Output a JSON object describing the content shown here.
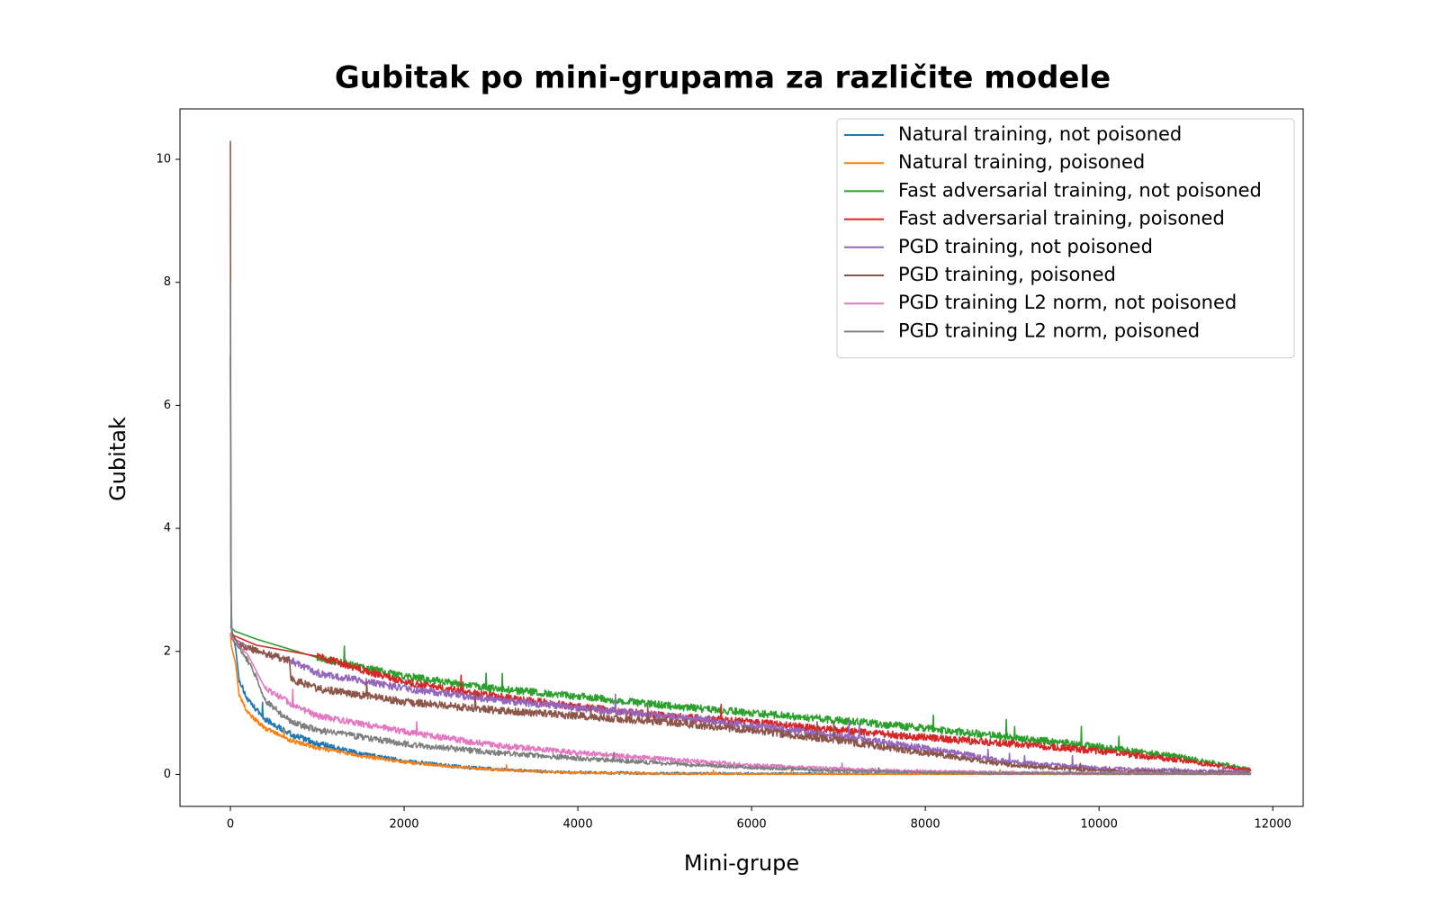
{
  "chart_data": {
    "type": "line",
    "title": "Gubitak po mini-grupama za različite modele",
    "xlabel": "Mini-grupe",
    "ylabel": "Gubitak",
    "xlim": [
      -580,
      12350
    ],
    "ylim": [
      -0.52,
      10.82
    ],
    "xticks": [
      0,
      2000,
      4000,
      6000,
      8000,
      10000,
      12000
    ],
    "yticks": [
      0,
      2,
      4,
      6,
      8,
      10
    ],
    "legend_position": "upper right",
    "grid": false,
    "series": [
      {
        "name": "Natural training, not poisoned",
        "color": "#1f77b4",
        "noise": 0.05,
        "points": [
          [
            0,
            6.8
          ],
          [
            10,
            2.4
          ],
          [
            60,
            2.05
          ],
          [
            100,
            1.55
          ],
          [
            200,
            1.2
          ],
          [
            400,
            0.9
          ],
          [
            700,
            0.65
          ],
          [
            1000,
            0.5
          ],
          [
            1500,
            0.33
          ],
          [
            2000,
            0.22
          ],
          [
            2500,
            0.14
          ],
          [
            3000,
            0.09
          ],
          [
            3500,
            0.05
          ],
          [
            4000,
            0.03
          ],
          [
            5000,
            0.015
          ],
          [
            6000,
            0.01
          ],
          [
            8000,
            0.005
          ],
          [
            11750,
            0.003
          ]
        ]
      },
      {
        "name": "Natural training, poisoned",
        "color": "#ff7f0e",
        "noise": 0.035,
        "points": [
          [
            0,
            2.3
          ],
          [
            10,
            2.1
          ],
          [
            60,
            1.8
          ],
          [
            100,
            1.3
          ],
          [
            200,
            1.0
          ],
          [
            400,
            0.75
          ],
          [
            700,
            0.55
          ],
          [
            1000,
            0.43
          ],
          [
            1500,
            0.3
          ],
          [
            2000,
            0.2
          ],
          [
            2500,
            0.13
          ],
          [
            3000,
            0.08
          ],
          [
            3500,
            0.05
          ],
          [
            4000,
            0.025
          ],
          [
            5000,
            0.01
          ],
          [
            6000,
            0.008
          ],
          [
            8000,
            0.005
          ],
          [
            11750,
            0.003
          ]
        ]
      },
      {
        "name": "Fast adversarial training, not poisoned",
        "color": "#2ca02c",
        "noise": 0.06,
        "points": [
          [
            0,
            2.4
          ],
          [
            50,
            2.33
          ],
          [
            300,
            2.2
          ],
          [
            1000,
            1.9
          ],
          [
            2000,
            1.6
          ],
          [
            3000,
            1.4
          ],
          [
            4000,
            1.27
          ],
          [
            5000,
            1.12
          ],
          [
            6000,
            1.0
          ],
          [
            7000,
            0.88
          ],
          [
            8000,
            0.75
          ],
          [
            9000,
            0.6
          ],
          [
            10000,
            0.45
          ],
          [
            11000,
            0.27
          ],
          [
            11750,
            0.08
          ]
        ]
      },
      {
        "name": "Fast adversarial training, poisoned",
        "color": "#d62728",
        "noise": 0.06,
        "points": [
          [
            0,
            2.3
          ],
          [
            50,
            2.25
          ],
          [
            300,
            2.1
          ],
          [
            1000,
            1.92
          ],
          [
            2000,
            1.5
          ],
          [
            3000,
            1.28
          ],
          [
            4000,
            1.1
          ],
          [
            5000,
            0.95
          ],
          [
            6000,
            0.85
          ],
          [
            7000,
            0.72
          ],
          [
            8000,
            0.6
          ],
          [
            9000,
            0.5
          ],
          [
            10000,
            0.38
          ],
          [
            11000,
            0.22
          ],
          [
            11750,
            0.06
          ]
        ]
      },
      {
        "name": "PGD training, not poisoned",
        "color": "#9467bd",
        "noise": 0.06,
        "points": [
          [
            0,
            2.3
          ],
          [
            50,
            2.2
          ],
          [
            300,
            2.0
          ],
          [
            700,
            1.85
          ],
          [
            1000,
            1.65
          ],
          [
            2000,
            1.4
          ],
          [
            3000,
            1.22
          ],
          [
            4000,
            1.08
          ],
          [
            5000,
            0.95
          ],
          [
            6000,
            0.8
          ],
          [
            7000,
            0.62
          ],
          [
            8000,
            0.42
          ],
          [
            9000,
            0.2
          ],
          [
            10000,
            0.1
          ],
          [
            11000,
            0.06
          ],
          [
            11750,
            0.04
          ]
        ]
      },
      {
        "name": "PGD training, poisoned",
        "color": "#8c564b",
        "noise": 0.06,
        "points": [
          [
            0,
            10.3
          ],
          [
            5,
            3.5
          ],
          [
            15,
            2.3
          ],
          [
            100,
            2.1
          ],
          [
            680,
            1.85
          ],
          [
            700,
            1.55
          ],
          [
            1000,
            1.4
          ],
          [
            2000,
            1.18
          ],
          [
            3000,
            1.05
          ],
          [
            4000,
            0.95
          ],
          [
            5000,
            0.85
          ],
          [
            6000,
            0.72
          ],
          [
            7000,
            0.55
          ],
          [
            8000,
            0.35
          ],
          [
            9000,
            0.15
          ],
          [
            10000,
            0.06
          ],
          [
            11000,
            0.03
          ],
          [
            11750,
            0.02
          ]
        ]
      },
      {
        "name": "PGD training L2 norm, not poisoned",
        "color": "#e377c2",
        "noise": 0.05,
        "points": [
          [
            0,
            2.3
          ],
          [
            50,
            2.15
          ],
          [
            200,
            1.95
          ],
          [
            400,
            1.4
          ],
          [
            700,
            1.15
          ],
          [
            1000,
            0.95
          ],
          [
            2000,
            0.7
          ],
          [
            3000,
            0.48
          ],
          [
            4000,
            0.35
          ],
          [
            5000,
            0.25
          ],
          [
            6000,
            0.15
          ],
          [
            7000,
            0.09
          ],
          [
            8000,
            0.05
          ],
          [
            9000,
            0.03
          ],
          [
            11750,
            0.01
          ]
        ]
      },
      {
        "name": "PGD training L2 norm, poisoned",
        "color": "#7f7f7f",
        "noise": 0.05,
        "points": [
          [
            0,
            8.0
          ],
          [
            5,
            3.0
          ],
          [
            20,
            2.2
          ],
          [
            100,
            2.05
          ],
          [
            250,
            1.75
          ],
          [
            400,
            1.2
          ],
          [
            700,
            0.85
          ],
          [
            1000,
            0.72
          ],
          [
            2000,
            0.5
          ],
          [
            3000,
            0.36
          ],
          [
            4000,
            0.26
          ],
          [
            5000,
            0.18
          ],
          [
            6000,
            0.11
          ],
          [
            7000,
            0.06
          ],
          [
            8000,
            0.03
          ],
          [
            9000,
            0.02
          ],
          [
            11750,
            0.01
          ]
        ]
      }
    ]
  }
}
